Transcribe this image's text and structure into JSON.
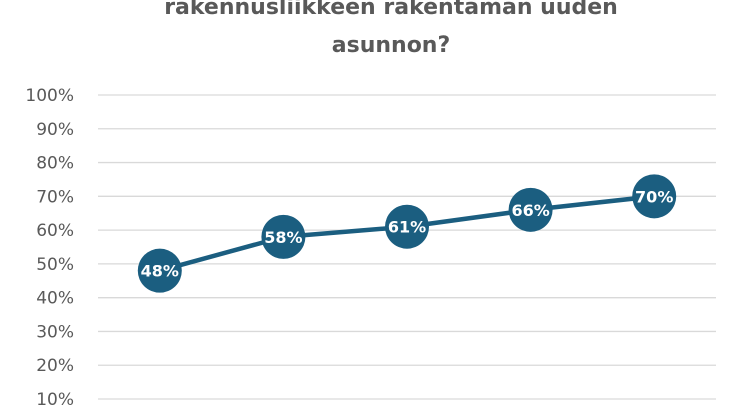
{
  "chart_data": {
    "type": "line",
    "title_lines": [
      "rakennusliikkeen rakentaman uuden",
      "asunnon?"
    ],
    "xlabel": "",
    "ylabel": "",
    "x": [
      "",
      "",
      "",
      "",
      ""
    ],
    "ylim": [
      10,
      100
    ],
    "y_ticks": [
      "100%",
      "90%",
      "80%",
      "70%",
      "60%",
      "50%",
      "40%",
      "30%",
      "20%",
      "10%"
    ],
    "grid": true,
    "series": [
      {
        "values": [
          48,
          58,
          61,
          66,
          70
        ],
        "labels": [
          "48%",
          "58%",
          "61%",
          "66%",
          "70%"
        ],
        "color": "#1b5e80"
      }
    ]
  }
}
